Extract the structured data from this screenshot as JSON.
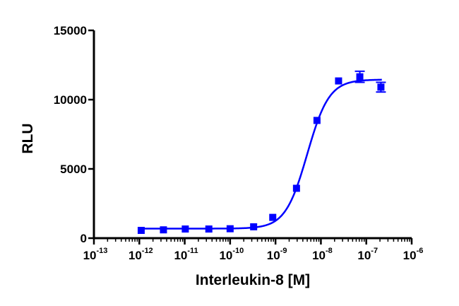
{
  "chart_data": {
    "type": "scatter",
    "xlabel": "Interleukin-8 [M]",
    "ylabel": "RLU",
    "x_scale": "log",
    "xlim": [
      1e-13,
      1e-06
    ],
    "ylim": [
      0,
      15000
    ],
    "x_ticks": [
      {
        "base": "10",
        "exp": "-13"
      },
      {
        "base": "10",
        "exp": "-12"
      },
      {
        "base": "10",
        "exp": "-11"
      },
      {
        "base": "10",
        "exp": "-10"
      },
      {
        "base": "10",
        "exp": "-9"
      },
      {
        "base": "10",
        "exp": "-8"
      },
      {
        "base": "10",
        "exp": "-7"
      },
      {
        "base": "10",
        "exp": "-6"
      }
    ],
    "y_ticks": [
      "0",
      "5000",
      "10000",
      "15000"
    ],
    "y_tick_values": [
      0,
      5000,
      10000,
      15000
    ],
    "grid": false,
    "color": "#0000ff",
    "series": [
      {
        "x": [
          1.1e-12,
          3.4e-12,
          1.03e-11,
          3.4e-11,
          1e-10,
          3.3e-10,
          8.7e-10,
          2.9e-09,
          8.2e-09,
          2.45e-08,
          7.2e-08,
          2.1e-07
        ],
        "y": [
          560,
          600,
          660,
          660,
          680,
          820,
          1500,
          3600,
          8500,
          11350,
          11650,
          10900
        ],
        "error": [
          0,
          0,
          0,
          0,
          0,
          0,
          0,
          0,
          0,
          0,
          400,
          350
        ]
      }
    ],
    "fit": {
      "model": "four-parameter logistic",
      "bottom": 690,
      "top": 11450,
      "ec50": 5e-09,
      "hill": 1.8,
      "x_range": [
        1.1e-12,
        2.2e-07
      ]
    }
  }
}
